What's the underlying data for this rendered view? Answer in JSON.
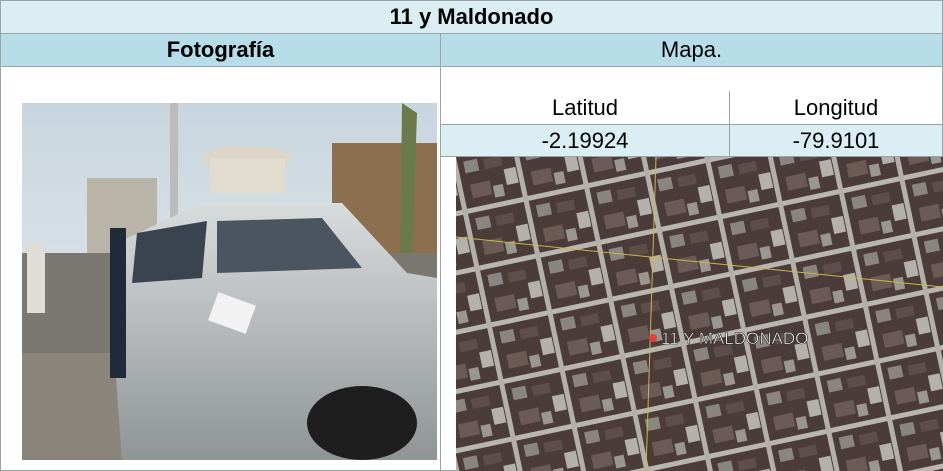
{
  "title": "11 y Maldonado",
  "table": {
    "headers": [
      "Fotografía",
      "Mapa."
    ],
    "coordinates": {
      "labels": [
        "Latitud",
        "Longitud"
      ],
      "values": [
        -2.19924,
        -79.9101
      ]
    }
  },
  "map": {
    "label": "11 Y MALDONADO"
  }
}
